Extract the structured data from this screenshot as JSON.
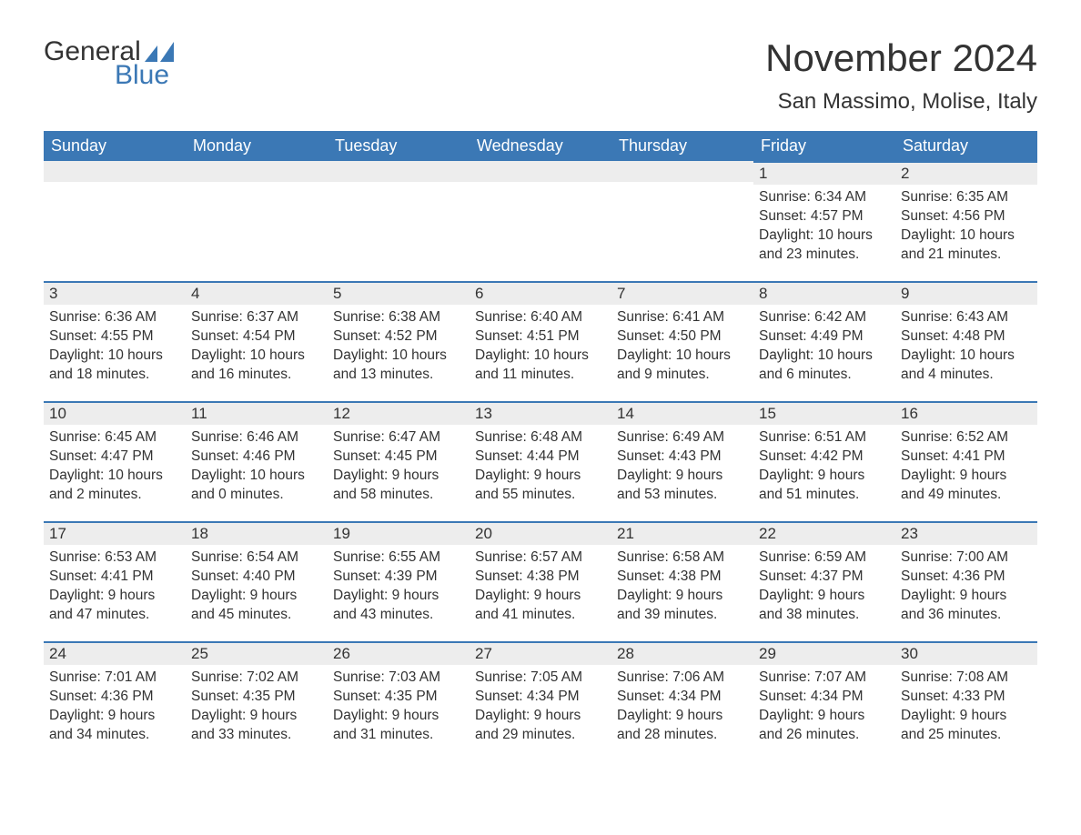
{
  "brand": {
    "part1": "General",
    "part2": "Blue",
    "color_accent": "#3b78b5",
    "color_text": "#333333"
  },
  "title": "November 2024",
  "location": "San Massimo, Molise, Italy",
  "colors": {
    "header_bg": "#3b78b5",
    "header_fg": "#ffffff",
    "daynum_bg": "#ededed",
    "cell_border_top": "#3b78b5",
    "body_text": "#333333",
    "background": "#ffffff"
  },
  "fonts": {
    "title_size_pt": 32,
    "location_size_pt": 18,
    "dow_size_pt": 14,
    "daynum_size_pt": 13,
    "body_size_pt": 12
  },
  "days_of_week": [
    "Sunday",
    "Monday",
    "Tuesday",
    "Wednesday",
    "Thursday",
    "Friday",
    "Saturday"
  ],
  "weeks": [
    [
      {
        "n": "",
        "sunrise": "",
        "sunset": "",
        "daylight": ""
      },
      {
        "n": "",
        "sunrise": "",
        "sunset": "",
        "daylight": ""
      },
      {
        "n": "",
        "sunrise": "",
        "sunset": "",
        "daylight": ""
      },
      {
        "n": "",
        "sunrise": "",
        "sunset": "",
        "daylight": ""
      },
      {
        "n": "",
        "sunrise": "",
        "sunset": "",
        "daylight": ""
      },
      {
        "n": "1",
        "sunrise": "Sunrise: 6:34 AM",
        "sunset": "Sunset: 4:57 PM",
        "daylight": "Daylight: 10 hours and 23 minutes."
      },
      {
        "n": "2",
        "sunrise": "Sunrise: 6:35 AM",
        "sunset": "Sunset: 4:56 PM",
        "daylight": "Daylight: 10 hours and 21 minutes."
      }
    ],
    [
      {
        "n": "3",
        "sunrise": "Sunrise: 6:36 AM",
        "sunset": "Sunset: 4:55 PM",
        "daylight": "Daylight: 10 hours and 18 minutes."
      },
      {
        "n": "4",
        "sunrise": "Sunrise: 6:37 AM",
        "sunset": "Sunset: 4:54 PM",
        "daylight": "Daylight: 10 hours and 16 minutes."
      },
      {
        "n": "5",
        "sunrise": "Sunrise: 6:38 AM",
        "sunset": "Sunset: 4:52 PM",
        "daylight": "Daylight: 10 hours and 13 minutes."
      },
      {
        "n": "6",
        "sunrise": "Sunrise: 6:40 AM",
        "sunset": "Sunset: 4:51 PM",
        "daylight": "Daylight: 10 hours and 11 minutes."
      },
      {
        "n": "7",
        "sunrise": "Sunrise: 6:41 AM",
        "sunset": "Sunset: 4:50 PM",
        "daylight": "Daylight: 10 hours and 9 minutes."
      },
      {
        "n": "8",
        "sunrise": "Sunrise: 6:42 AM",
        "sunset": "Sunset: 4:49 PM",
        "daylight": "Daylight: 10 hours and 6 minutes."
      },
      {
        "n": "9",
        "sunrise": "Sunrise: 6:43 AM",
        "sunset": "Sunset: 4:48 PM",
        "daylight": "Daylight: 10 hours and 4 minutes."
      }
    ],
    [
      {
        "n": "10",
        "sunrise": "Sunrise: 6:45 AM",
        "sunset": "Sunset: 4:47 PM",
        "daylight": "Daylight: 10 hours and 2 minutes."
      },
      {
        "n": "11",
        "sunrise": "Sunrise: 6:46 AM",
        "sunset": "Sunset: 4:46 PM",
        "daylight": "Daylight: 10 hours and 0 minutes."
      },
      {
        "n": "12",
        "sunrise": "Sunrise: 6:47 AM",
        "sunset": "Sunset: 4:45 PM",
        "daylight": "Daylight: 9 hours and 58 minutes."
      },
      {
        "n": "13",
        "sunrise": "Sunrise: 6:48 AM",
        "sunset": "Sunset: 4:44 PM",
        "daylight": "Daylight: 9 hours and 55 minutes."
      },
      {
        "n": "14",
        "sunrise": "Sunrise: 6:49 AM",
        "sunset": "Sunset: 4:43 PM",
        "daylight": "Daylight: 9 hours and 53 minutes."
      },
      {
        "n": "15",
        "sunrise": "Sunrise: 6:51 AM",
        "sunset": "Sunset: 4:42 PM",
        "daylight": "Daylight: 9 hours and 51 minutes."
      },
      {
        "n": "16",
        "sunrise": "Sunrise: 6:52 AM",
        "sunset": "Sunset: 4:41 PM",
        "daylight": "Daylight: 9 hours and 49 minutes."
      }
    ],
    [
      {
        "n": "17",
        "sunrise": "Sunrise: 6:53 AM",
        "sunset": "Sunset: 4:41 PM",
        "daylight": "Daylight: 9 hours and 47 minutes."
      },
      {
        "n": "18",
        "sunrise": "Sunrise: 6:54 AM",
        "sunset": "Sunset: 4:40 PM",
        "daylight": "Daylight: 9 hours and 45 minutes."
      },
      {
        "n": "19",
        "sunrise": "Sunrise: 6:55 AM",
        "sunset": "Sunset: 4:39 PM",
        "daylight": "Daylight: 9 hours and 43 minutes."
      },
      {
        "n": "20",
        "sunrise": "Sunrise: 6:57 AM",
        "sunset": "Sunset: 4:38 PM",
        "daylight": "Daylight: 9 hours and 41 minutes."
      },
      {
        "n": "21",
        "sunrise": "Sunrise: 6:58 AM",
        "sunset": "Sunset: 4:38 PM",
        "daylight": "Daylight: 9 hours and 39 minutes."
      },
      {
        "n": "22",
        "sunrise": "Sunrise: 6:59 AM",
        "sunset": "Sunset: 4:37 PM",
        "daylight": "Daylight: 9 hours and 38 minutes."
      },
      {
        "n": "23",
        "sunrise": "Sunrise: 7:00 AM",
        "sunset": "Sunset: 4:36 PM",
        "daylight": "Daylight: 9 hours and 36 minutes."
      }
    ],
    [
      {
        "n": "24",
        "sunrise": "Sunrise: 7:01 AM",
        "sunset": "Sunset: 4:36 PM",
        "daylight": "Daylight: 9 hours and 34 minutes."
      },
      {
        "n": "25",
        "sunrise": "Sunrise: 7:02 AM",
        "sunset": "Sunset: 4:35 PM",
        "daylight": "Daylight: 9 hours and 33 minutes."
      },
      {
        "n": "26",
        "sunrise": "Sunrise: 7:03 AM",
        "sunset": "Sunset: 4:35 PM",
        "daylight": "Daylight: 9 hours and 31 minutes."
      },
      {
        "n": "27",
        "sunrise": "Sunrise: 7:05 AM",
        "sunset": "Sunset: 4:34 PM",
        "daylight": "Daylight: 9 hours and 29 minutes."
      },
      {
        "n": "28",
        "sunrise": "Sunrise: 7:06 AM",
        "sunset": "Sunset: 4:34 PM",
        "daylight": "Daylight: 9 hours and 28 minutes."
      },
      {
        "n": "29",
        "sunrise": "Sunrise: 7:07 AM",
        "sunset": "Sunset: 4:34 PM",
        "daylight": "Daylight: 9 hours and 26 minutes."
      },
      {
        "n": "30",
        "sunrise": "Sunrise: 7:08 AM",
        "sunset": "Sunset: 4:33 PM",
        "daylight": "Daylight: 9 hours and 25 minutes."
      }
    ]
  ]
}
